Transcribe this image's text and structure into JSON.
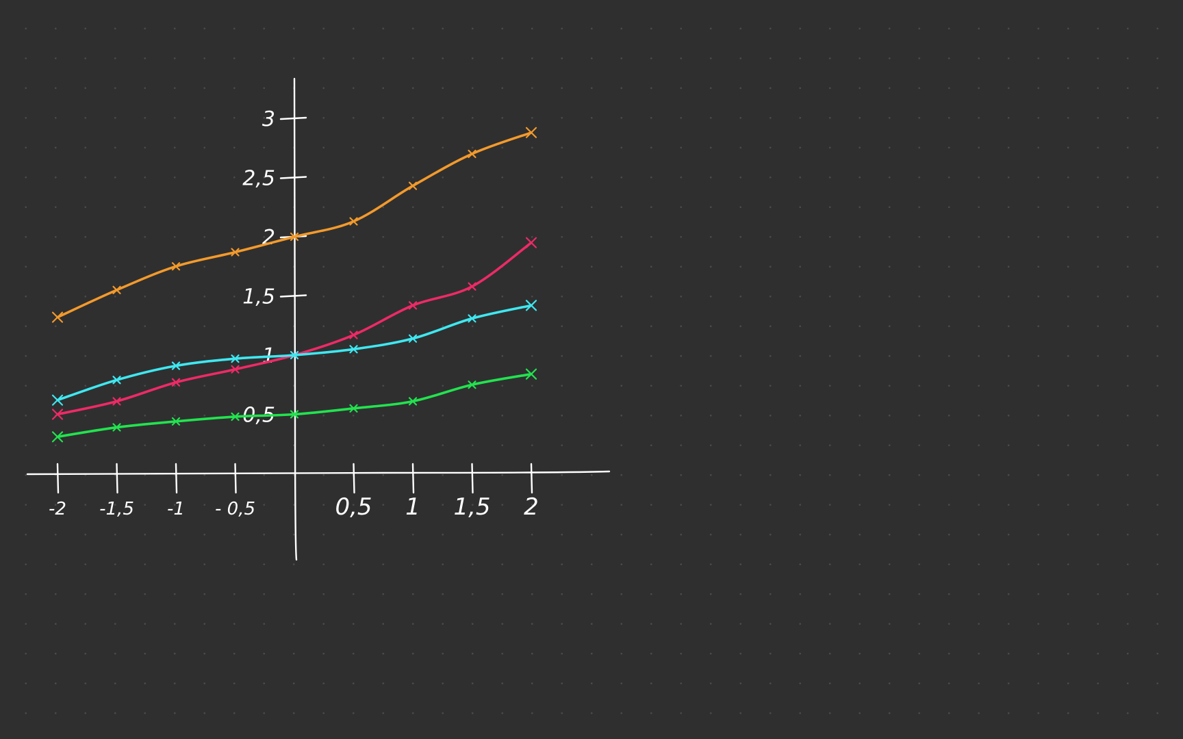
{
  "chart_data": {
    "type": "line",
    "style": "hand-drawn on dotted dark canvas",
    "background_color": "#2f2f30",
    "axis_color": "#ffffff",
    "xlim": [
      -2,
      2
    ],
    "ylim": [
      0,
      3
    ],
    "x_ticks": [
      -2,
      -1.5,
      -1,
      -0.5,
      0.5,
      1,
      1.5,
      2
    ],
    "x_tick_labels": [
      "-2",
      "-1,5",
      "-1",
      "- 0,5",
      "0,5",
      "1",
      "1,5",
      "2"
    ],
    "y_ticks": [
      0.5,
      1,
      1.5,
      2,
      2.5,
      3
    ],
    "y_tick_labels": [
      "0,5",
      "1",
      "1,5",
      "2",
      "2,5",
      "3"
    ],
    "grid": false,
    "legend": "none",
    "x": [
      -2,
      -1.5,
      -1,
      -0.5,
      0,
      0.5,
      1,
      1.5,
      2
    ],
    "series": [
      {
        "color": "#f39a2b",
        "values": [
          1.32,
          1.55,
          1.75,
          1.87,
          2.0,
          2.13,
          2.43,
          2.7,
          2.88
        ]
      },
      {
        "color": "#ee2a66",
        "values": [
          0.5,
          0.61,
          0.77,
          0.88,
          1.0,
          1.17,
          1.42,
          1.58,
          1.95
        ]
      },
      {
        "color": "#3ee8f0",
        "values": [
          0.62,
          0.79,
          0.91,
          0.97,
          1.0,
          1.05,
          1.14,
          1.31,
          1.42
        ]
      },
      {
        "color": "#22e34e",
        "values": [
          0.31,
          0.39,
          0.44,
          0.48,
          0.5,
          0.55,
          0.61,
          0.75,
          0.84
        ]
      }
    ]
  }
}
